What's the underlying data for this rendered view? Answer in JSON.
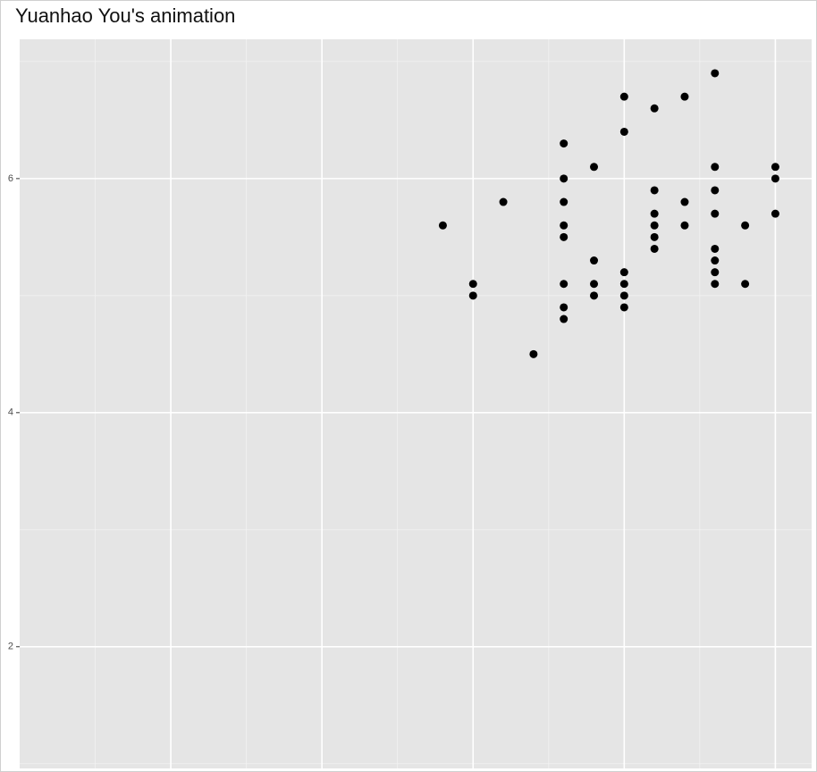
{
  "chart_data": {
    "type": "scatter",
    "title": "Yuanhao You's animation",
    "x": [
      2.8,
      3.0,
      3.0,
      3.2,
      3.4,
      3.6,
      3.6,
      3.6,
      3.6,
      3.6,
      3.6,
      3.6,
      3.6,
      3.8,
      3.8,
      3.8,
      3.8,
      4.0,
      4.0,
      4.0,
      4.0,
      4.0,
      4.0,
      4.2,
      4.2,
      4.2,
      4.2,
      4.2,
      4.2,
      4.4,
      4.4,
      4.4,
      4.6,
      4.6,
      4.6,
      4.6,
      4.6,
      4.6,
      4.6,
      4.6,
      4.8,
      4.8,
      5.0,
      5.0,
      5.0
    ],
    "values": [
      5.6,
      5.1,
      5.0,
      5.8,
      4.5,
      6.3,
      6.0,
      5.8,
      5.6,
      5.5,
      5.1,
      4.9,
      4.8,
      6.1,
      5.3,
      5.1,
      5.0,
      6.7,
      6.4,
      5.2,
      5.1,
      5.0,
      4.9,
      6.6,
      5.9,
      5.7,
      5.6,
      5.5,
      5.4,
      6.7,
      5.8,
      5.6,
      6.9,
      6.1,
      5.9,
      5.7,
      5.4,
      5.3,
      5.2,
      5.1,
      5.6,
      5.1,
      6.1,
      6.0,
      5.7
    ],
    "color": "#000000",
    "xlim": [
      0,
      5.24
    ],
    "xticks": [
      1,
      2,
      3,
      4,
      5
    ],
    "ylim": [
      0.96,
      7.19
    ],
    "yticks": [
      2,
      4,
      6
    ],
    "grid": true
  }
}
